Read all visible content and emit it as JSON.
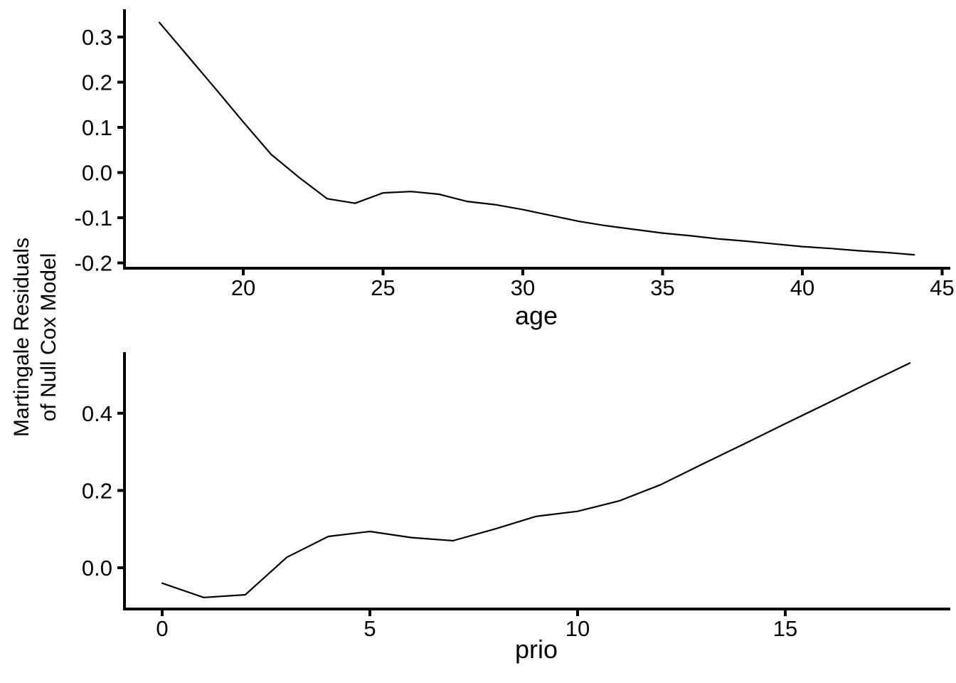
{
  "figure": {
    "background": "#ffffff",
    "line_color": "#000000",
    "text_color": "#000000",
    "ylabel_line1": "Martingale Residuals",
    "ylabel_line2": "of Null Cox Model"
  },
  "chart_data": [
    {
      "type": "line",
      "title": "",
      "xlabel": "age",
      "ylabel": "Martingale Residuals of Null Cox Model",
      "grid": false,
      "legend_position": "none",
      "xlim": [
        15.6,
        45.4
      ],
      "ylim": [
        -0.21,
        0.36
      ],
      "x_tick_values": [
        20,
        25,
        30,
        35,
        40,
        45
      ],
      "x_tick_labels": [
        "20",
        "25",
        "30",
        "35",
        "40",
        "45"
      ],
      "y_tick_values": [
        -0.2,
        -0.1,
        0.0,
        0.1,
        0.2,
        0.3
      ],
      "y_tick_labels": [
        "-0.2",
        "-0.1",
        "0.0",
        "0.1",
        "0.2",
        "0.3"
      ],
      "x": [
        17,
        18,
        19,
        20,
        21,
        22,
        23,
        24,
        25,
        26,
        27,
        28,
        29,
        30,
        31,
        32,
        33,
        34,
        35,
        36,
        37,
        38,
        39,
        40,
        41,
        42,
        43,
        44
      ],
      "values": [
        0.332,
        0.259,
        0.186,
        0.112,
        0.04,
        -0.011,
        -0.058,
        -0.068,
        -0.045,
        -0.042,
        -0.048,
        -0.064,
        -0.071,
        -0.082,
        -0.095,
        -0.108,
        -0.118,
        -0.126,
        -0.134,
        -0.14,
        -0.147,
        -0.152,
        -0.158,
        -0.164,
        -0.168,
        -0.173,
        -0.177,
        -0.182
      ]
    },
    {
      "type": "line",
      "title": "",
      "xlabel": "prio",
      "ylabel": "Martingale Residuals of Null Cox Model",
      "grid": false,
      "legend_position": "none",
      "xlim": [
        -0.9,
        18.9
      ],
      "ylim": [
        -0.107,
        0.558
      ],
      "x_tick_values": [
        0,
        5,
        10,
        15
      ],
      "x_tick_labels": [
        "0",
        "5",
        "10",
        "15"
      ],
      "y_tick_values": [
        0.0,
        0.2,
        0.4
      ],
      "y_tick_labels": [
        "0.0",
        "0.2",
        "0.4"
      ],
      "x": [
        0,
        1,
        2,
        3,
        4,
        5,
        6,
        7,
        8,
        9,
        10,
        11,
        12,
        13,
        14,
        15,
        16,
        17,
        18
      ],
      "values": [
        -0.04,
        -0.077,
        -0.07,
        0.027,
        0.081,
        0.094,
        0.078,
        0.07,
        0.1,
        0.133,
        0.146,
        0.173,
        0.215,
        0.268,
        0.32,
        0.373,
        0.425,
        0.478,
        0.53
      ]
    }
  ]
}
